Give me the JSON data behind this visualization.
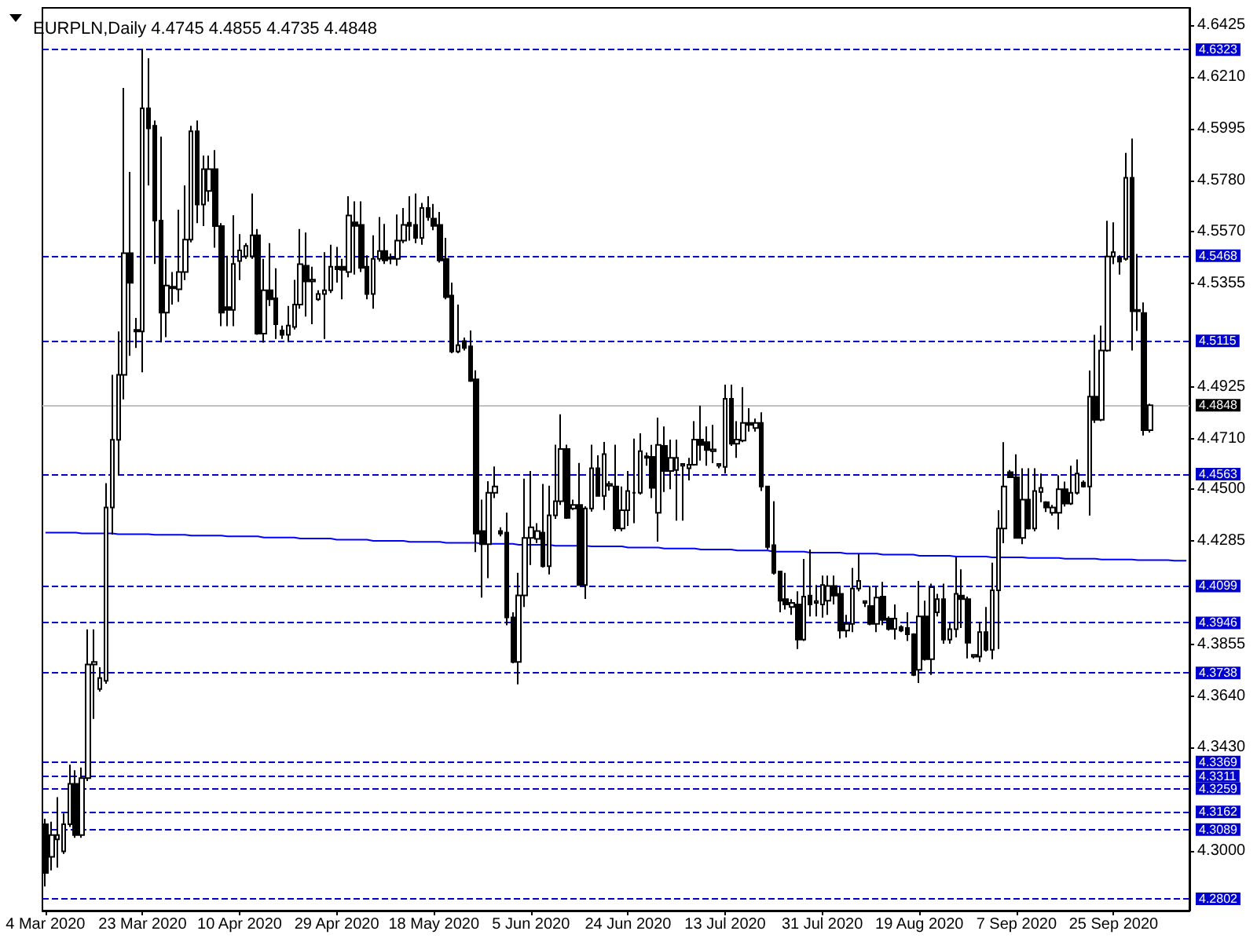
{
  "chart_data": {
    "type": "candlestick",
    "title": "EURPLN,Daily 4.4745 4.4855 4.4735 4.4848",
    "categories": [
      "4 Mar 2020",
      null,
      null,
      null,
      null,
      null,
      null,
      null,
      null,
      null,
      null,
      null,
      null,
      null,
      null,
      null,
      "23 Mar 2020",
      null,
      null,
      null,
      null,
      null,
      null,
      null,
      null,
      null,
      null,
      null,
      null,
      null,
      null,
      null,
      "10 Apr 2020",
      null,
      null,
      null,
      null,
      null,
      null,
      null,
      null,
      null,
      null,
      null,
      null,
      null,
      null,
      null,
      "29 Apr 2020",
      null,
      null,
      null,
      null,
      null,
      null,
      null,
      null,
      null,
      null,
      null,
      null,
      null,
      null,
      null,
      "18 May 2020",
      null,
      null,
      null,
      null,
      null,
      null,
      null,
      null,
      null,
      null,
      null,
      null,
      null,
      null,
      null,
      "5 Jun 2020",
      null,
      null,
      null,
      null,
      null,
      null,
      null,
      null,
      null,
      null,
      null,
      null,
      null,
      null,
      null,
      "24 Jun 2020",
      null,
      null,
      null,
      null,
      null,
      null,
      null,
      null,
      null,
      null,
      null,
      null,
      null,
      null,
      null,
      "13 Jul 2020",
      null,
      null,
      null,
      null,
      null,
      null,
      null,
      null,
      null,
      null,
      null,
      null,
      null,
      null,
      null,
      "31 Jul 2020",
      null,
      null,
      null,
      null,
      null,
      null,
      null,
      null,
      null,
      null,
      null,
      null,
      null,
      null,
      null,
      "19 Aug 2020",
      null,
      null,
      null,
      null,
      null,
      null,
      null,
      null,
      null,
      null,
      null,
      null,
      null,
      null,
      null,
      "7 Sep 2020",
      null,
      null,
      null,
      null,
      null,
      null,
      null,
      null,
      null,
      null,
      null,
      null,
      null,
      null,
      null,
      "25 Sep 2020",
      null,
      null,
      null,
      null,
      null,
      null,
      null,
      null,
      null,
      null,
      null,
      null
    ],
    "ohlc": [
      [
        4.3111,
        4.3134,
        4.2853,
        4.2909
      ],
      [
        4.2976,
        4.3122,
        4.292,
        4.3066
      ],
      [
        4.3048,
        4.3223,
        4.2931,
        4.3066
      ],
      [
        4.2999,
        4.3156,
        4.2988,
        4.3111
      ],
      [
        4.3111,
        4.3358,
        4.31,
        4.3279
      ],
      [
        4.3279,
        4.3335,
        4.3055,
        4.3066
      ],
      [
        4.3066,
        4.3346,
        4.3055,
        4.3302
      ],
      [
        4.3302,
        4.3919,
        4.329,
        4.3773
      ],
      [
        4.3773,
        4.3919,
        4.3548,
        4.3784
      ],
      [
        4.3672,
        4.3762,
        4.3661,
        4.3717
      ],
      [
        4.3706,
        4.4525,
        4.3694,
        4.4424
      ],
      [
        4.4424,
        4.4974,
        4.4312,
        4.4705
      ],
      [
        4.4705,
        4.5154,
        4.4559,
        4.4974
      ],
      [
        4.4974,
        4.6164,
        4.4873,
        4.5479
      ],
      [
        4.5479,
        4.5816,
        4.5053,
        4.5356
      ],
      [
        4.5154,
        4.521,
        4.5086,
        4.5161
      ],
      [
        4.5154,
        4.6326,
        4.4985,
        4.6079
      ],
      [
        4.6079,
        4.6287,
        4.576,
        4.5996
      ],
      [
        4.6007,
        4.6029,
        4.5434,
        4.5614
      ],
      [
        4.5614,
        4.5962,
        4.5109,
        4.5232
      ],
      [
        4.5232,
        4.5457,
        4.5131,
        4.5345
      ],
      [
        4.5333,
        4.5401,
        4.5266,
        4.534
      ],
      [
        4.5329,
        4.5659,
        4.5277,
        4.5401
      ],
      [
        4.5401,
        4.576,
        4.5367,
        4.5535
      ],
      [
        4.5535,
        4.6007,
        4.5524,
        4.5984
      ],
      [
        4.5984,
        4.6029,
        4.5603,
        4.5681
      ],
      [
        4.5681,
        4.5883,
        4.5591,
        4.5827
      ],
      [
        4.5737,
        4.5883,
        4.5693,
        4.5827
      ],
      [
        4.5827,
        4.5906,
        4.5502,
        4.5591
      ],
      [
        4.5591,
        4.5603,
        4.5176,
        4.5232
      ],
      [
        4.5255,
        4.5468,
        4.5176,
        4.5244
      ],
      [
        4.5244,
        4.5636,
        4.5176,
        4.5434
      ],
      [
        4.5446,
        4.5558,
        4.5367,
        4.549
      ],
      [
        4.5466,
        4.552,
        4.5455,
        4.5509
      ],
      [
        4.5466,
        4.5726,
        4.5455,
        4.5553
      ],
      [
        4.5553,
        4.5579,
        4.514,
        4.5145
      ],
      [
        4.5145,
        4.5455,
        4.5108,
        4.5325
      ],
      [
        4.5325,
        4.552,
        4.526,
        4.5288
      ],
      [
        4.5292,
        4.5416,
        4.5123,
        4.5184
      ],
      [
        4.5158,
        4.5179,
        4.5123,
        4.514
      ],
      [
        4.514,
        4.526,
        4.5114,
        4.5179
      ],
      [
        4.5173,
        4.5368,
        4.5162,
        4.5266
      ],
      [
        4.5266,
        4.5579,
        4.5249,
        4.5433
      ],
      [
        4.5427,
        4.5564,
        4.5216,
        4.5362
      ],
      [
        4.5362,
        4.5423,
        4.5184,
        4.5369
      ],
      [
        4.5288,
        4.5325,
        4.5281,
        4.531
      ],
      [
        4.531,
        4.5483,
        4.5123,
        4.5325
      ],
      [
        4.5325,
        4.5514,
        4.5314,
        4.5423
      ],
      [
        4.5423,
        4.5505,
        4.5357,
        4.5412
      ],
      [
        4.5423,
        4.5455,
        4.5288,
        4.541
      ],
      [
        4.5401,
        4.5715,
        4.5379,
        4.5635
      ],
      [
        4.5607,
        4.5694,
        4.539,
        4.5592
      ],
      [
        4.5596,
        4.5694,
        4.5401,
        4.5418
      ],
      [
        4.5423,
        4.547,
        4.5288,
        4.531
      ],
      [
        4.531,
        4.5553,
        4.5249,
        4.5455
      ],
      [
        4.5455,
        4.5629,
        4.5444,
        4.5488
      ],
      [
        4.5488,
        4.56,
        4.5434,
        4.5449
      ],
      [
        4.5455,
        4.5477,
        4.5433,
        4.5462
      ],
      [
        4.5455,
        4.5639,
        4.5427,
        4.5531
      ],
      [
        4.5531,
        4.5666,
        4.552,
        4.5596
      ],
      [
        4.5605,
        4.5715,
        4.5531,
        4.5592
      ],
      [
        4.5596,
        4.5726,
        4.552,
        4.5542
      ],
      [
        4.5542,
        4.5687,
        4.5514,
        4.5666
      ],
      [
        4.5666,
        4.5715,
        4.5613,
        4.5629
      ],
      [
        4.5622,
        4.5683,
        4.5574,
        4.5592
      ],
      [
        4.5596,
        4.565,
        4.544,
        4.5449
      ],
      [
        4.5455,
        4.5542,
        4.5288,
        4.5297
      ],
      [
        4.5303,
        4.5357,
        4.5064,
        4.5071
      ],
      [
        4.5071,
        4.5266,
        4.5064,
        4.5097
      ],
      [
        4.5114,
        4.5129,
        4.5075,
        4.5086
      ],
      [
        4.5092,
        4.5158,
        4.4945,
        4.4949
      ],
      [
        4.4956,
        4.4993,
        4.424,
        4.4316
      ],
      [
        4.4327,
        4.4457,
        4.4051,
        4.4272
      ],
      [
        4.4272,
        4.4533,
        4.4131,
        4.4485
      ],
      [
        4.4485,
        4.4594,
        4.4463,
        4.4511
      ],
      [
        4.4327,
        4.4342,
        4.4305,
        4.4316
      ],
      [
        4.432,
        4.4403,
        4.3936,
        4.3969
      ],
      [
        4.3969,
        4.399,
        4.3778,
        4.3784
      ],
      [
        4.3784,
        4.4153,
        4.3691,
        4.406
      ],
      [
        4.406,
        4.4544,
        4.4012,
        4.4298
      ],
      [
        4.4298,
        4.4576,
        4.4186,
        4.4342
      ],
      [
        4.4294,
        4.4359,
        4.4277,
        4.4327
      ],
      [
        4.432,
        4.4522,
        4.4175,
        4.4181
      ],
      [
        4.4181,
        4.4515,
        4.4147,
        4.4392
      ],
      [
        4.4392,
        4.4685,
        4.4377,
        4.445
      ],
      [
        4.445,
        4.4811,
        4.4435,
        4.4667
      ],
      [
        4.4667,
        4.4685,
        4.4377,
        4.4381
      ],
      [
        4.442,
        4.4457,
        4.4414,
        4.4435
      ],
      [
        4.4435,
        4.4609,
        4.4103,
        4.4103
      ],
      [
        4.4103,
        4.4429,
        4.4045,
        4.442
      ],
      [
        4.442,
        4.4685,
        4.4407,
        4.4587
      ],
      [
        4.4587,
        4.4641,
        4.4472,
        4.4472
      ],
      [
        4.4472,
        4.4696,
        4.4414,
        4.4646
      ],
      [
        4.4515,
        4.4533,
        4.4494,
        4.4522
      ],
      [
        4.4511,
        4.4685,
        4.4327,
        4.4338
      ],
      [
        4.4337,
        4.4511,
        4.4326,
        4.4413
      ],
      [
        4.4413,
        4.4576,
        4.4348,
        4.4493
      ],
      [
        4.4485,
        4.471,
        4.4359,
        4.4485
      ],
      [
        4.4485,
        4.4732,
        4.4478,
        4.4658
      ],
      [
        4.463,
        4.4652,
        4.4598,
        4.4637
      ],
      [
        4.4634,
        4.4684,
        4.4463,
        4.4506
      ],
      [
        4.4402,
        4.4797,
        4.4283,
        4.4684
      ],
      [
        4.468,
        4.476,
        4.4489,
        4.4576
      ],
      [
        4.4576,
        4.4706,
        4.45,
        4.463
      ],
      [
        4.458,
        4.4706,
        4.437,
        4.463
      ],
      [
        4.4598,
        4.4608,
        4.437,
        4.4605
      ],
      [
        4.4587,
        4.463,
        4.4537,
        4.4602
      ],
      [
        4.4602,
        4.4782,
        4.4598,
        4.4706
      ],
      [
        4.4706,
        4.4847,
        4.4619,
        4.4684
      ],
      [
        4.4695,
        4.476,
        4.4598,
        4.4663
      ],
      [
        4.4658,
        4.4767,
        4.4608,
        4.4665
      ],
      [
        4.4598,
        4.4608,
        4.4587,
        4.4605
      ],
      [
        4.4593,
        4.4934,
        4.4565,
        4.4875
      ],
      [
        4.4875,
        4.4934,
        4.468,
        4.4689
      ],
      [
        4.4689,
        4.4782,
        4.463,
        4.4706
      ],
      [
        4.4702,
        4.4923,
        4.4695,
        4.4775
      ],
      [
        4.4775,
        4.4836,
        4.4739,
        4.4767
      ],
      [
        4.4754,
        4.4793,
        4.4739,
        4.4775
      ],
      [
        4.4775,
        4.4819,
        4.4493,
        4.4511
      ],
      [
        4.4511,
        4.4511,
        4.425,
        4.4261
      ],
      [
        4.4268,
        4.445,
        4.4146,
        4.4153
      ],
      [
        4.4159,
        4.4159,
        4.399,
        4.4038
      ],
      [
        4.4044,
        4.4153,
        4.4001,
        4.4022
      ],
      [
        4.4012,
        4.4044,
        4.3979,
        4.4029
      ],
      [
        4.4022,
        4.4077,
        4.3838,
        4.3877
      ],
      [
        4.3877,
        4.4211,
        4.3871,
        4.4055
      ],
      [
        4.4059,
        4.425,
        4.3973,
        4.4022
      ],
      [
        4.4029,
        4.4103,
        4.3973,
        4.4036
      ],
      [
        4.4022,
        4.4142,
        4.3968,
        4.4103
      ],
      [
        4.4038,
        4.4142,
        4.3979,
        4.4099
      ],
      [
        4.4099,
        4.4142,
        4.4022,
        4.4059
      ],
      [
        4.4066,
        4.4099,
        4.3881,
        4.3914
      ],
      [
        4.3914,
        4.3979,
        4.3886,
        4.3942
      ],
      [
        4.3942,
        4.4174,
        4.3908,
        4.4088
      ],
      [
        4.4088,
        4.4233,
        4.4077,
        4.412
      ],
      [
        4.4029,
        4.4038,
        4.4012,
        4.4036
      ],
      [
        4.4016,
        4.4099,
        4.3936,
        4.3942
      ],
      [
        4.3942,
        4.4099,
        4.3908,
        4.4051
      ],
      [
        4.4055,
        4.4116,
        4.3936,
        4.3958
      ],
      [
        4.3964,
        4.3973,
        4.3914,
        4.3921
      ],
      [
        4.3921,
        4.4022,
        4.3877,
        4.3964
      ],
      [
        4.3929,
        4.3936,
        4.3908,
        4.3914
      ],
      [
        4.3925,
        4.399,
        4.3871,
        4.3899
      ],
      [
        4.3899,
        4.3903,
        4.3725,
        4.373
      ],
      [
        4.3751,
        4.412,
        4.3697,
        4.3973
      ],
      [
        4.3973,
        4.4038,
        4.379,
        4.3795
      ],
      [
        4.3795,
        4.4109,
        4.373,
        4.4094
      ],
      [
        4.399,
        4.4066,
        4.3973,
        4.4044
      ],
      [
        4.4044,
        4.4109,
        4.386,
        4.3877
      ],
      [
        4.3877,
        4.3946,
        4.386,
        4.392
      ],
      [
        4.392,
        4.4218,
        4.3886,
        4.4066
      ],
      [
        4.4059,
        4.4168,
        4.3925,
        4.4044
      ],
      [
        4.4044,
        4.4055,
        4.3799,
        4.3864
      ],
      [
        4.3806,
        4.3816,
        4.3799,
        4.3813
      ],
      [
        4.3806,
        4.3951,
        4.3784,
        4.3908
      ],
      [
        4.3908,
        4.4012,
        4.3827,
        4.3834
      ],
      [
        4.3834,
        4.4196,
        4.3795,
        4.4081
      ],
      [
        4.4081,
        4.4413,
        4.3838,
        4.4337
      ],
      [
        4.4337,
        4.4695,
        4.4276,
        4.4511
      ],
      [
        4.4571,
        4.458,
        4.455,
        4.455
      ],
      [
        4.455,
        4.4645,
        4.4298,
        4.4298
      ],
      [
        4.4298,
        4.4587,
        4.4272,
        4.4457
      ],
      [
        4.4457,
        4.4587,
        4.4333,
        4.4337
      ],
      [
        4.4337,
        4.4587,
        4.4326,
        4.4493
      ],
      [
        4.4489,
        4.4565,
        4.4446,
        4.4506
      ],
      [
        4.4446,
        4.445,
        4.4406,
        4.4424
      ],
      [
        4.4402,
        4.4435,
        4.4391,
        4.4424
      ],
      [
        4.4402,
        4.4558,
        4.4333,
        4.45
      ],
      [
        4.45,
        4.4532,
        4.4428,
        4.4441
      ],
      [
        4.4441,
        4.4598,
        4.4435,
        4.4485
      ],
      [
        4.4485,
        4.4624,
        4.4478,
        4.4565
      ],
      [
        4.4528,
        4.4537,
        4.4507,
        4.4511
      ],
      [
        4.4511,
        4.4992,
        4.4391,
        4.4884
      ],
      [
        4.4884,
        4.514,
        4.4775,
        4.4788
      ],
      [
        4.4788,
        4.5179,
        4.4782,
        4.5075
      ],
      [
        4.5075,
        4.5613,
        4.507,
        4.5465
      ],
      [
        4.5465,
        4.5607,
        4.5433,
        4.5483
      ],
      [
        4.5461,
        4.547,
        4.539,
        4.5444
      ],
      [
        4.5455,
        4.5895,
        4.5448,
        4.5791
      ],
      [
        4.5791,
        4.5954,
        4.5075,
        4.5238
      ],
      [
        4.5244,
        4.5476,
        4.5157,
        4.5238
      ],
      [
        4.5231,
        4.5275,
        4.4723,
        4.4745
      ],
      [
        4.4745,
        4.4855,
        4.4735,
        4.4848
      ],
      null,
      null,
      null,
      null,
      null,
      null
    ],
    "ylim": [
      4.2753,
      4.6496
    ],
    "yticks": [
      {
        "value": 4.6425,
        "label": "4.6425"
      },
      {
        "value": 4.621,
        "label": "4.6210"
      },
      {
        "value": 4.5995,
        "label": "4.5995"
      },
      {
        "value": 4.578,
        "label": "4.5780"
      },
      {
        "value": 4.557,
        "label": "4.5570"
      },
      {
        "value": 4.5355,
        "label": "4.5355"
      },
      {
        "value": 4.4925,
        "label": "4.4925"
      },
      {
        "value": 4.471,
        "label": "4.4710"
      },
      {
        "value": 4.45,
        "label": "4.4500"
      },
      {
        "value": 4.4285,
        "label": "4.4285"
      },
      {
        "value": 4.3855,
        "label": "4.3855"
      },
      {
        "value": 4.364,
        "label": "4.3640"
      },
      {
        "value": 4.343,
        "label": "4.3430"
      },
      {
        "value": 4.3,
        "label": "4.3000"
      }
    ],
    "ref_lines": [
      {
        "axis": "y",
        "value": 4.6323,
        "label": "4.6323",
        "color": "#0000cc",
        "line_style": "dashed"
      },
      {
        "axis": "y",
        "value": 4.5468,
        "label": "4.5468",
        "color": "#0000cc",
        "line_style": "dashed"
      },
      {
        "axis": "y",
        "value": 4.5115,
        "label": "4.5115",
        "color": "#0000cc",
        "line_style": "dashed"
      },
      {
        "axis": "y",
        "value": 4.4848,
        "label": "4.4848",
        "color": "#c0c0c0",
        "line_style": "solid"
      },
      {
        "axis": "y",
        "value": 4.4563,
        "label": "4.4563",
        "color": "#0000cc",
        "line_style": "dashed"
      },
      {
        "axis": "y",
        "value": 4.4099,
        "label": "4.4099",
        "color": "#0000cc",
        "line_style": "dashed"
      },
      {
        "axis": "y",
        "value": 4.3946,
        "label": "4.3946",
        "color": "#0000cc",
        "line_style": "dashed"
      },
      {
        "axis": "y",
        "value": 4.3738,
        "label": "4.3738",
        "color": "#0000cc",
        "line_style": "dashed"
      },
      {
        "axis": "y",
        "value": 4.3369,
        "label": "4.3369",
        "color": "#0000cc",
        "line_style": "dashed"
      },
      {
        "axis": "y",
        "value": 4.3311,
        "label": "4.3311",
        "color": "#0000cc",
        "line_style": "dashed"
      },
      {
        "axis": "y",
        "value": 4.3259,
        "label": "4.3259",
        "color": "#0000cc",
        "line_style": "dashed"
      },
      {
        "axis": "y",
        "value": 4.3162,
        "label": "4.3162",
        "color": "#0000cc",
        "line_style": "dashed"
      },
      {
        "axis": "y",
        "value": 4.3089,
        "label": "4.3089",
        "color": "#0000cc",
        "line_style": "dashed"
      },
      {
        "axis": "y",
        "value": 4.2802,
        "label": "4.2802",
        "color": "#0000cc",
        "line_style": "dashed"
      }
    ],
    "series": [
      {
        "type": "line",
        "color": "#0000ff",
        "values": [
          4.432,
          4.432,
          4.432,
          4.432,
          4.432,
          4.432,
          4.4317,
          4.4317,
          4.4317,
          4.4317,
          4.4317,
          4.4317,
          4.4314,
          4.4314,
          4.4314,
          4.4314,
          4.4314,
          4.4314,
          4.4311,
          4.4311,
          4.4311,
          4.4311,
          4.4311,
          4.4311,
          4.4308,
          4.4308,
          4.4308,
          4.4308,
          4.4308,
          4.4308,
          4.4305,
          4.4305,
          4.4305,
          4.4305,
          4.4305,
          4.4305,
          4.43,
          4.43,
          4.43,
          4.43,
          4.43,
          4.43,
          4.4296,
          4.4296,
          4.4296,
          4.4296,
          4.4296,
          4.4296,
          4.4291,
          4.4291,
          4.4291,
          4.4291,
          4.4291,
          4.4291,
          4.4286,
          4.4286,
          4.4286,
          4.4286,
          4.4286,
          4.4286,
          4.4282,
          4.4282,
          4.4282,
          4.4282,
          4.4282,
          4.4282,
          4.4278,
          4.4278,
          4.4278,
          4.4278,
          4.4278,
          4.4278,
          4.4274,
          4.4274,
          4.4274,
          4.4274,
          4.4274,
          4.4274,
          4.427,
          4.427,
          4.427,
          4.427,
          4.427,
          4.427,
          4.4266,
          4.4266,
          4.4266,
          4.4266,
          4.4266,
          4.4266,
          4.4263,
          4.4263,
          4.4263,
          4.4263,
          4.4263,
          4.4263,
          4.4258,
          4.4258,
          4.4258,
          4.4258,
          4.4258,
          4.4258,
          4.4254,
          4.4254,
          4.4254,
          4.4254,
          4.4254,
          4.4254,
          4.425,
          4.425,
          4.425,
          4.425,
          4.425,
          4.425,
          4.4246,
          4.4246,
          4.4246,
          4.4246,
          4.4246,
          4.4246,
          4.4241,
          4.4241,
          4.4241,
          4.4241,
          4.4241,
          4.4241,
          4.4237,
          4.4237,
          4.4237,
          4.4237,
          4.4237,
          4.4237,
          4.4233,
          4.4233,
          4.4233,
          4.4233,
          4.4233,
          4.4233,
          4.4229,
          4.4229,
          4.4229,
          4.4229,
          4.4229,
          4.4229,
          4.4224,
          4.4224,
          4.4224,
          4.4224,
          4.4224,
          4.4224,
          4.4221,
          4.4221,
          4.4221,
          4.4221,
          4.4221,
          4.4221,
          4.4218,
          4.4218,
          4.4218,
          4.4218,
          4.4218,
          4.4218,
          4.4215,
          4.4215,
          4.4215,
          4.4215,
          4.4215,
          4.4215,
          4.4212,
          4.4212,
          4.4212,
          4.4212,
          4.4212,
          4.4212,
          4.4209,
          4.4209,
          4.4209,
          4.4209,
          4.4209,
          4.4209,
          4.4206,
          4.4206,
          4.4206,
          4.4206,
          4.4206,
          4.4206,
          4.4204,
          4.4204,
          4.4204
        ]
      }
    ],
    "grid": false
  }
}
